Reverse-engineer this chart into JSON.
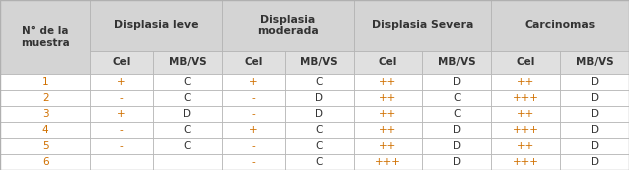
{
  "row_header": "N° de la\nmuestra",
  "rows": [
    [
      "1",
      "+",
      "C",
      "+",
      "C",
      "++",
      "D",
      "++",
      "D"
    ],
    [
      "2",
      "-",
      "C",
      "-",
      "D",
      "++",
      "C",
      "+++",
      "D"
    ],
    [
      "3",
      "+",
      "D",
      "-",
      "D",
      "++",
      "C",
      "++",
      "D"
    ],
    [
      "4",
      "-",
      "C",
      "+",
      "C",
      "++",
      "D",
      "+++",
      "D"
    ],
    [
      "5",
      "-",
      "C",
      "-",
      "C",
      "++",
      "D",
      "++",
      "D"
    ],
    [
      "6",
      "",
      "",
      "-",
      "C",
      "+++",
      "D",
      "+++",
      "D"
    ]
  ],
  "group_labels": [
    "Displasia leve",
    "Displasia\nmoderada",
    "Displasia Severa",
    "Carcinomas"
  ],
  "subcols": [
    "Cel",
    "MB/VS",
    "Cel",
    "MB/VS",
    "Cel",
    "MB/VS",
    "Cel",
    "MB/VS"
  ],
  "bg_header": "#d4d4d4",
  "bg_subheader": "#e0e0e0",
  "bg_row": "#ffffff",
  "border_color": "#b0b0b0",
  "text_dark": "#333333",
  "orange_color": "#d07000",
  "figsize": [
    6.29,
    1.7
  ],
  "dpi": 100,
  "col_props": [
    0.118,
    0.082,
    0.09,
    0.082,
    0.09,
    0.09,
    0.09,
    0.09,
    0.09
  ]
}
